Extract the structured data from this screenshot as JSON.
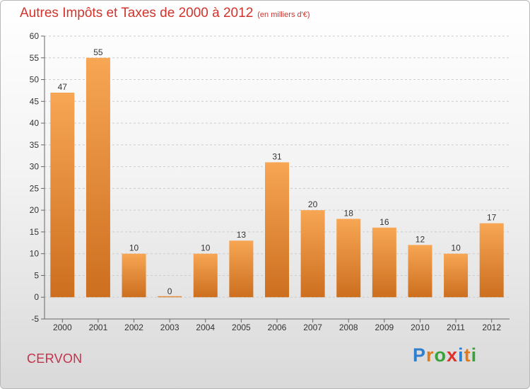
{
  "title": "Autres Impôts et Taxes de 2000 à 2012",
  "unit": "(en milliers d'€)",
  "commune": "CERVON",
  "brand": {
    "name": "Proxiti",
    "letters": [
      {
        "ch": "P",
        "color": "#2f7fd0"
      },
      {
        "ch": "r",
        "color": "#e07b1d"
      },
      {
        "ch": "o",
        "color": "#3aa23a"
      },
      {
        "ch": "x",
        "color": "#e0302c"
      },
      {
        "ch": "i",
        "color": "#2f7fd0"
      },
      {
        "ch": "t",
        "color": "#e07b1d"
      },
      {
        "ch": "i",
        "color": "#3aa23a"
      }
    ]
  },
  "colors": {
    "bar_light": "#f7a654",
    "bar_dark": "#cc6f1f",
    "title": "#d0342c",
    "grid": "#cccccc"
  },
  "chart_data": {
    "type": "bar",
    "categories": [
      "2000",
      "2001",
      "2002",
      "2003",
      "2004",
      "2005",
      "2006",
      "2007",
      "2008",
      "2009",
      "2010",
      "2011",
      "2012"
    ],
    "values": [
      47,
      55,
      10,
      0,
      10,
      13,
      31,
      20,
      18,
      16,
      12,
      10,
      17
    ],
    "yticks": [
      -5,
      0,
      5,
      10,
      15,
      20,
      25,
      30,
      35,
      40,
      45,
      50,
      55,
      60
    ],
    "ylim": [
      -5,
      60
    ],
    "grid": true,
    "title": "Autres Impôts et Taxes de 2000 à 2012",
    "xlabel": "",
    "ylabel": ""
  }
}
